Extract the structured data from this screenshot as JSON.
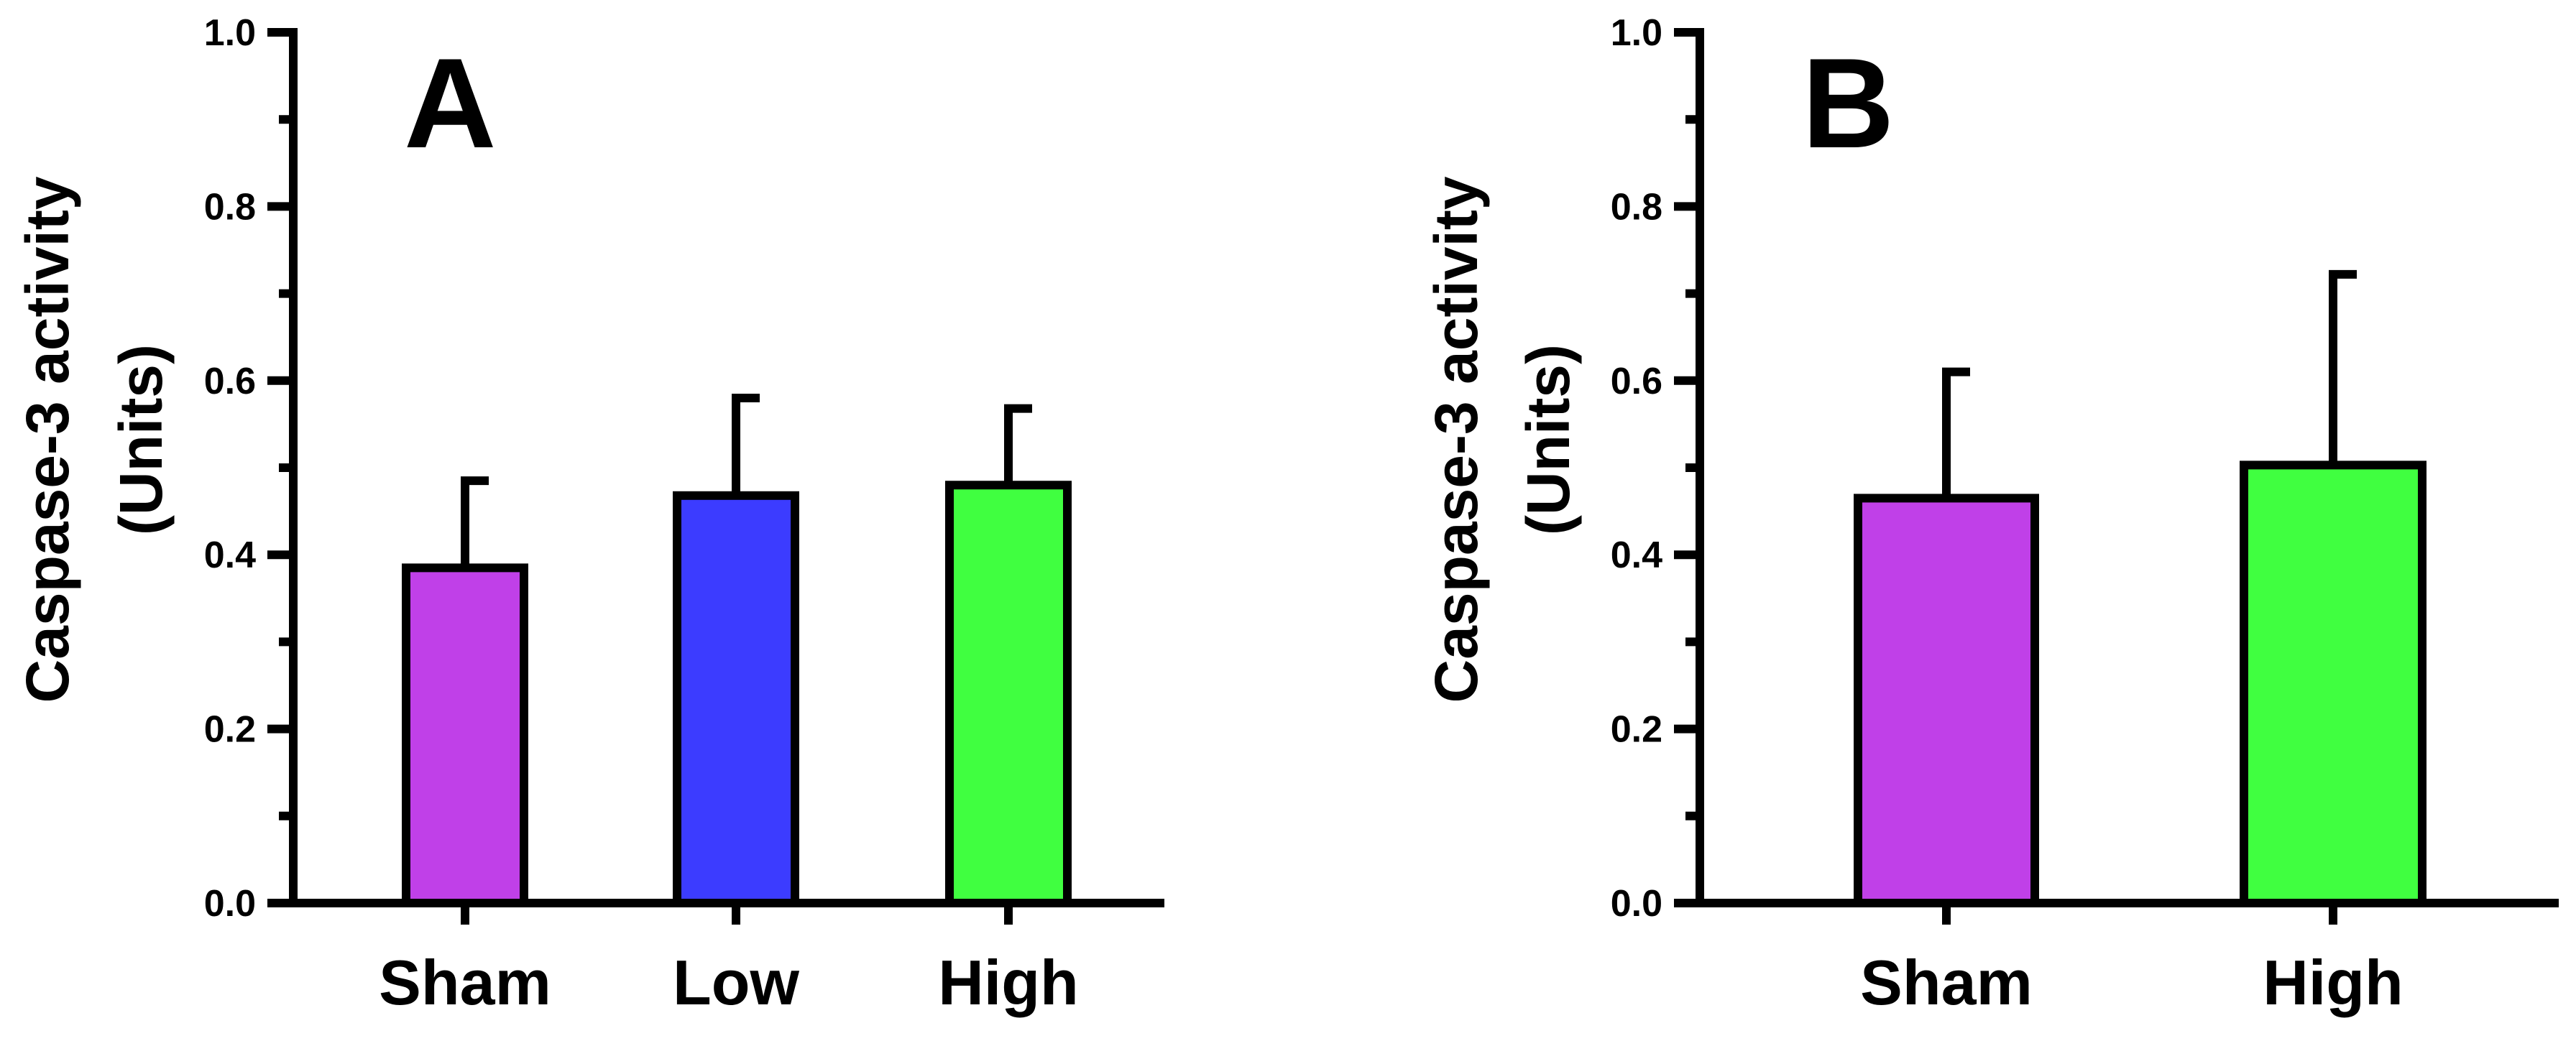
{
  "chart_data": [
    {
      "type": "bar",
      "panel_label": "A",
      "categories": [
        "Sham",
        "Low",
        "High"
      ],
      "values": [
        0.385,
        0.468,
        0.48
      ],
      "errors": [
        0.1,
        0.112,
        0.088
      ],
      "colors": [
        "#C040E8",
        "#3C3CFF",
        "#40FF40"
      ],
      "ylabel_line1": "Caspase-3 activity",
      "ylabel_line2": "(Units)",
      "xlabel": "",
      "ylim": [
        0,
        1.0
      ],
      "yticks": [
        "0.0",
        "0.2",
        "0.4",
        "0.6",
        "0.8",
        "1.0"
      ],
      "grid": false
    },
    {
      "type": "bar",
      "panel_label": "B",
      "categories": [
        "Sham",
        "High"
      ],
      "values": [
        0.465,
        0.503
      ],
      "errors": [
        0.145,
        0.219
      ],
      "colors": [
        "#C040E8",
        "#40FF40"
      ],
      "ylabel_line1": "Caspase-3 activity",
      "ylabel_line2": "(Units)",
      "xlabel": "",
      "ylim": [
        0,
        1.0
      ],
      "yticks": [
        "0.0",
        "0.2",
        "0.4",
        "0.6",
        "0.8",
        "1.0"
      ],
      "grid": false
    }
  ]
}
